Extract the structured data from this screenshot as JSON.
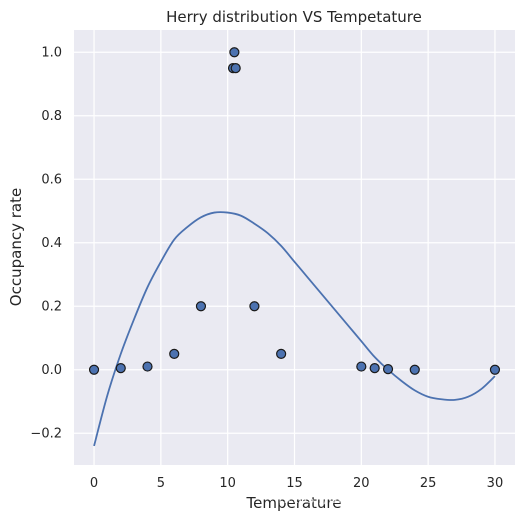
{
  "chart_data": {
    "type": "scatter",
    "title": "Herry distribution VS Tempetature",
    "xlabel": "Temperature",
    "ylabel": "Occupancy rate",
    "xlim": [
      -1.5,
      31.5
    ],
    "ylim": [
      -0.3,
      1.07
    ],
    "xticks": [
      0,
      5,
      10,
      15,
      20,
      25,
      30
    ],
    "yticks": [
      -0.2,
      0.0,
      0.2,
      0.4,
      0.6,
      0.8,
      1.0
    ],
    "xtick_labels": [
      "0",
      "5",
      "10",
      "15",
      "20",
      "25",
      "30"
    ],
    "ytick_labels": [
      "−0.2",
      "0.0",
      "0.2",
      "0.4",
      "0.6",
      "0.8",
      "1.0"
    ],
    "grid": true,
    "points": {
      "x": [
        0,
        2,
        4,
        6,
        8,
        10.4,
        10.5,
        10.6,
        12,
        14,
        20,
        21,
        22,
        24,
        30
      ],
      "y": [
        0.0,
        0.005,
        0.01,
        0.05,
        0.2,
        0.95,
        1.0,
        0.95,
        0.2,
        0.05,
        0.01,
        0.005,
        0.002,
        0.0,
        0.0
      ],
      "color": "#4c72b0"
    },
    "fit_curve": {
      "type": "line",
      "color": "#4c72b0",
      "x": [
        0,
        1,
        2,
        3,
        4,
        5,
        6,
        7,
        8,
        9,
        10,
        11,
        12,
        13,
        14,
        15,
        16,
        17,
        18,
        19,
        20,
        21,
        22,
        23,
        24,
        25,
        26,
        27,
        28,
        29,
        30
      ],
      "y": [
        -0.24,
        -0.08,
        0.05,
        0.16,
        0.26,
        0.34,
        0.41,
        0.45,
        0.48,
        0.495,
        0.495,
        0.485,
        0.46,
        0.43,
        0.39,
        0.34,
        0.29,
        0.24,
        0.19,
        0.14,
        0.09,
        0.04,
        0.0,
        -0.035,
        -0.065,
        -0.085,
        -0.093,
        -0.095,
        -0.085,
        -0.06,
        -0.02
      ]
    },
    "background": "#eaeaf2",
    "watermark": "https://blog.csdn.net/PRINCE2327"
  }
}
